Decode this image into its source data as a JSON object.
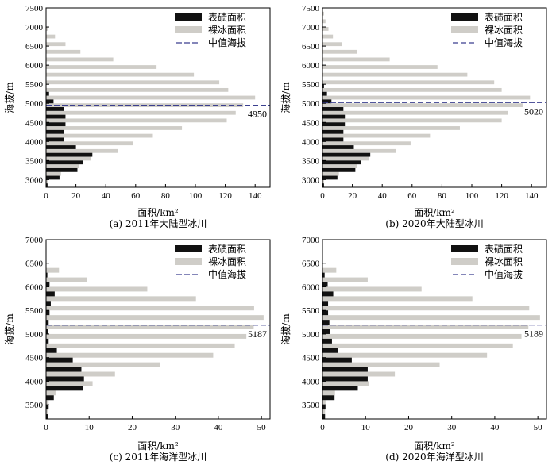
{
  "figure": {
    "background": "#ffffff"
  },
  "colors": {
    "debris": "#111111",
    "clean": "#cfcdc8",
    "median_line": "#3a3f8f"
  },
  "chart_data": [
    {
      "id": "a",
      "type": "bar",
      "orientation": "horizontal",
      "caption": "(a) 2011年大陆型冰川",
      "xlabel": "面积/km²",
      "ylabel": "海拔/m",
      "xlim": [
        0,
        150
      ],
      "xticks": [
        0,
        20,
        40,
        60,
        80,
        100,
        120,
        140
      ],
      "ylim": [
        2800,
        7500
      ],
      "yticks": [
        3000,
        3500,
        4000,
        4500,
        5000,
        5500,
        6000,
        6500,
        7000,
        7500
      ],
      "legend": {
        "position": "top-right",
        "entries": [
          "表碛面积",
          "裸冰面积",
          "中值海拔"
        ]
      },
      "median_elevation": 4950,
      "median_label": "4950",
      "elevations": [
        2900,
        3100,
        3300,
        3500,
        3700,
        3900,
        4100,
        4300,
        4500,
        4700,
        4900,
        5100,
        5300,
        5500,
        5700,
        5900,
        6100,
        6300,
        6500,
        6700,
        6900
      ],
      "series": [
        {
          "name": "表碛面积",
          "values": [
            1,
            9,
            21,
            25,
            31,
            20,
            12,
            12,
            13,
            13,
            12,
            5,
            2,
            0,
            0,
            0,
            0,
            0,
            0,
            0,
            0
          ]
        },
        {
          "name": "裸冰面积",
          "values": [
            1,
            10,
            22,
            30,
            48,
            58,
            71,
            91,
            121,
            127,
            132,
            140,
            122,
            116,
            99,
            74,
            45,
            23,
            13,
            6,
            1
          ]
        }
      ]
    },
    {
      "id": "b",
      "type": "bar",
      "orientation": "horizontal",
      "caption": "(b) 2020年大陆型冰川",
      "xlabel": "面积/km²",
      "ylabel": "海拔/m",
      "xlim": [
        0,
        150
      ],
      "xticks": [
        0,
        20,
        40,
        60,
        80,
        100,
        120,
        140
      ],
      "ylim": [
        2800,
        7500
      ],
      "yticks": [
        3000,
        3500,
        4000,
        4500,
        5000,
        5500,
        6000,
        6500,
        7000,
        7500
      ],
      "legend": {
        "position": "top-right",
        "entries": [
          "表碛面积",
          "裸冰面积",
          "中值海拔"
        ]
      },
      "median_elevation": 5020,
      "median_label": "5020",
      "elevations": [
        2900,
        3100,
        3300,
        3500,
        3700,
        3900,
        4100,
        4300,
        4500,
        4700,
        4900,
        5100,
        5300,
        5500,
        5700,
        5900,
        6100,
        6300,
        6500,
        6700,
        6900,
        7100,
        7300
      ],
      "series": [
        {
          "name": "表碛面积",
          "values": [
            1,
            10,
            22,
            26,
            32,
            21,
            14,
            14,
            15,
            15,
            14,
            6,
            3,
            1,
            0,
            0,
            0,
            0,
            0,
            0,
            0,
            0,
            0
          ]
        },
        {
          "name": "裸冰面积",
          "values": [
            1,
            11,
            23,
            31,
            49,
            59,
            72,
            92,
            120,
            124,
            134,
            139,
            120,
            115,
            97,
            77,
            45,
            23,
            13,
            7,
            4,
            2,
            1
          ]
        }
      ]
    },
    {
      "id": "c",
      "type": "bar",
      "orientation": "horizontal",
      "caption": "(c) 2011年海洋型冰川",
      "xlabel": "面积/km²",
      "ylabel": "海拔/m",
      "xlim": [
        0,
        52
      ],
      "xticks": [
        0,
        10,
        20,
        30,
        40,
        50
      ],
      "ylim": [
        3200,
        7000
      ],
      "yticks": [
        3500,
        4000,
        4500,
        5000,
        5500,
        6000,
        6500,
        7000
      ],
      "legend": {
        "position": "top-right",
        "entries": [
          "表碛面积",
          "裸冰面积",
          "中值海拔"
        ]
      },
      "median_elevation": 5187,
      "median_label": "5187",
      "elevations": [
        3300,
        3500,
        3700,
        3900,
        4100,
        4300,
        4500,
        4700,
        4900,
        5100,
        5300,
        5500,
        5700,
        5900,
        6100,
        6300
      ],
      "series": [
        {
          "name": "表碛面积",
          "values": [
            0.5,
            0.6,
            1.8,
            8.5,
            8.8,
            8.2,
            6.2,
            2.5,
            0.6,
            0.5,
            0.6,
            0.8,
            1.1,
            2.0,
            0.8,
            0.3
          ]
        },
        {
          "name": "裸冰面积",
          "values": [
            0.5,
            0.6,
            2.2,
            10.8,
            16,
            26.5,
            38.8,
            43.8,
            46.5,
            48.2,
            50.5,
            48.3,
            34.8,
            23.5,
            9.5,
            3.0
          ]
        }
      ]
    },
    {
      "id": "d",
      "type": "bar",
      "orientation": "horizontal",
      "caption": "(d) 2020年海洋型冰川",
      "xlabel": "面积/km²",
      "ylabel": "海拔/m",
      "xlim": [
        0,
        52
      ],
      "xticks": [
        0,
        10,
        20,
        30,
        40,
        50
      ],
      "ylim": [
        3200,
        7000
      ],
      "yticks": [
        3500,
        4000,
        4500,
        5000,
        5500,
        6000,
        6500,
        7000
      ],
      "legend": {
        "position": "top-right",
        "entries": [
          "表碛面积",
          "裸冰面积",
          "中值海拔"
        ]
      },
      "median_elevation": 5189,
      "median_label": "5189",
      "elevations": [
        3300,
        3500,
        3700,
        3900,
        4100,
        4300,
        4500,
        4700,
        4900,
        5100,
        5300,
        5500,
        5700,
        5900,
        6100,
        6300
      ],
      "series": [
        {
          "name": "表碛面积",
          "values": [
            0.6,
            0.7,
            2.8,
            8.2,
            10.5,
            10.5,
            6.8,
            3.5,
            2.2,
            1.8,
            1.6,
            1.3,
            1.3,
            2.5,
            1.2,
            0.5
          ]
        },
        {
          "name": "裸冰面积",
          "values": [
            0.6,
            0.7,
            2.9,
            10.8,
            16.8,
            27.2,
            38.2,
            44.2,
            46.2,
            47.8,
            50.5,
            48.0,
            34.8,
            23.0,
            10.5,
            3.2
          ]
        }
      ]
    }
  ]
}
